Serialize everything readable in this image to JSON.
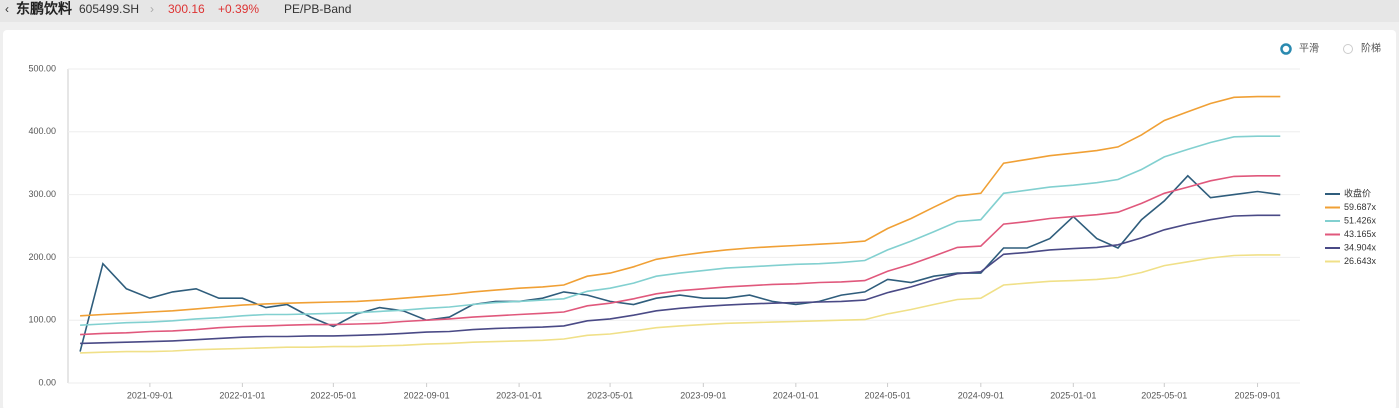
{
  "header": {
    "name": "东鹏饮料",
    "code": "605499.SH",
    "price": "300.16",
    "change": "+0.39%",
    "tab": "PE/PB-Band"
  },
  "options": [
    "平滑",
    "阶梯"
  ],
  "chart_data": {
    "type": "line",
    "x": [
      "2021-06-01",
      "2021-07-01",
      "2021-08-01",
      "2021-09-01",
      "2021-10-01",
      "2021-11-01",
      "2021-12-01",
      "2022-01-01",
      "2022-02-01",
      "2022-03-01",
      "2022-04-01",
      "2022-05-01",
      "2022-06-01",
      "2022-07-01",
      "2022-08-01",
      "2022-09-01",
      "2022-10-01",
      "2022-11-01",
      "2022-12-01",
      "2023-01-01",
      "2023-02-01",
      "2023-03-01",
      "2023-04-01",
      "2023-05-01",
      "2023-06-01",
      "2023-07-01",
      "2023-08-01",
      "2023-09-01",
      "2023-10-01",
      "2023-11-01",
      "2023-12-01",
      "2024-01-01",
      "2024-02-01",
      "2024-03-01",
      "2024-04-01",
      "2024-05-01",
      "2024-06-01",
      "2024-07-01",
      "2024-08-01",
      "2024-09-01",
      "2024-10-01",
      "2024-11-01",
      "2024-12-01",
      "2025-01-01",
      "2025-02-01",
      "2025-03-01",
      "2025-04-01",
      "2025-05-01",
      "2025-06-01",
      "2025-07-01",
      "2025-08-01",
      "2025-09-01",
      "2025-10-01"
    ],
    "xlim": [
      "2021-05-16",
      "2025-10-27"
    ],
    "xticks": [
      "2021-09-01",
      "2022-01-01",
      "2022-05-01",
      "2022-09-01",
      "2023-01-01",
      "2023-05-01",
      "2023-09-01",
      "2024-01-01",
      "2024-05-01",
      "2024-09-01",
      "2025-01-01",
      "2025-05-01",
      "2025-09-01"
    ],
    "ylim": [
      0,
      500
    ],
    "yticks": [
      {
        "value": 0,
        "label": "0.00"
      },
      {
        "value": 100,
        "label": "100.00"
      },
      {
        "value": 200,
        "label": "200.00"
      },
      {
        "value": 300,
        "label": "300.00"
      },
      {
        "value": 400,
        "label": "400.00"
      },
      {
        "value": 500,
        "label": "500.00"
      }
    ],
    "grid": true,
    "series": [
      {
        "name": "收盘价",
        "color": "#2f5d7c",
        "values": [
          50,
          190,
          150,
          135,
          145,
          150,
          135,
          135,
          120,
          125,
          105,
          90,
          110,
          120,
          115,
          100,
          105,
          125,
          130,
          130,
          135,
          145,
          140,
          130,
          125,
          135,
          140,
          135,
          135,
          140,
          130,
          125,
          130,
          140,
          145,
          165,
          160,
          170,
          175,
          175,
          215,
          215,
          230,
          265,
          230,
          215,
          260,
          290,
          330,
          295,
          300,
          305,
          300
        ]
      },
      {
        "name": "59.687x",
        "color": "#f0a035",
        "values": [
          107,
          109,
          111,
          113,
          115,
          118,
          121,
          124,
          126,
          127,
          128,
          129,
          130,
          132,
          135,
          138,
          141,
          145,
          148,
          151,
          153,
          156,
          170,
          175,
          185,
          197,
          203,
          208,
          212,
          215,
          217,
          219,
          221,
          223,
          226,
          246,
          262,
          280,
          298,
          302,
          350,
          356,
          362,
          366,
          370,
          376,
          395,
          418,
          432,
          445,
          455,
          456,
          456
        ]
      },
      {
        "name": "51.426x",
        "color": "#82d0d0",
        "values": [
          92,
          94,
          96,
          97,
          99,
          102,
          104,
          107,
          109,
          109,
          110,
          111,
          112,
          114,
          116,
          119,
          121,
          125,
          128,
          130,
          132,
          134,
          146,
          151,
          159,
          170,
          175,
          179,
          183,
          185,
          187,
          189,
          190,
          192,
          195,
          212,
          226,
          241,
          257,
          260,
          302,
          307,
          312,
          315,
          319,
          324,
          340,
          360,
          372,
          383,
          392,
          393,
          393
        ]
      },
      {
        "name": "43.165x",
        "color": "#e0587c",
        "values": [
          77,
          79,
          80,
          82,
          83,
          85,
          88,
          90,
          91,
          92,
          93,
          93,
          94,
          95,
          98,
          100,
          102,
          105,
          107,
          109,
          111,
          113,
          123,
          127,
          134,
          142,
          147,
          150,
          153,
          155,
          157,
          158,
          160,
          161,
          163,
          178,
          189,
          202,
          216,
          218,
          253,
          257,
          262,
          265,
          268,
          272,
          286,
          302,
          312,
          322,
          329,
          330,
          330
        ]
      },
      {
        "name": "34.904x",
        "color": "#4a4a86",
        "values": [
          63,
          64,
          65,
          66,
          67,
          69,
          71,
          73,
          74,
          74,
          75,
          75,
          76,
          77,
          79,
          81,
          82,
          85,
          87,
          88,
          89,
          91,
          99,
          102,
          108,
          115,
          119,
          122,
          124,
          126,
          127,
          128,
          129,
          130,
          132,
          144,
          153,
          164,
          174,
          177,
          205,
          208,
          212,
          214,
          216,
          220,
          231,
          244,
          253,
          260,
          266,
          267,
          267
        ]
      },
      {
        "name": "26.643x",
        "color": "#f0e088",
        "values": [
          48,
          49,
          50,
          50,
          51,
          53,
          54,
          55,
          56,
          57,
          57,
          58,
          58,
          59,
          60,
          62,
          63,
          65,
          66,
          67,
          68,
          70,
          76,
          78,
          83,
          88,
          91,
          93,
          95,
          96,
          97,
          98,
          99,
          100,
          101,
          110,
          117,
          125,
          133,
          135,
          156,
          159,
          162,
          163,
          165,
          168,
          176,
          187,
          193,
          199,
          203,
          204,
          204
        ]
      }
    ]
  }
}
